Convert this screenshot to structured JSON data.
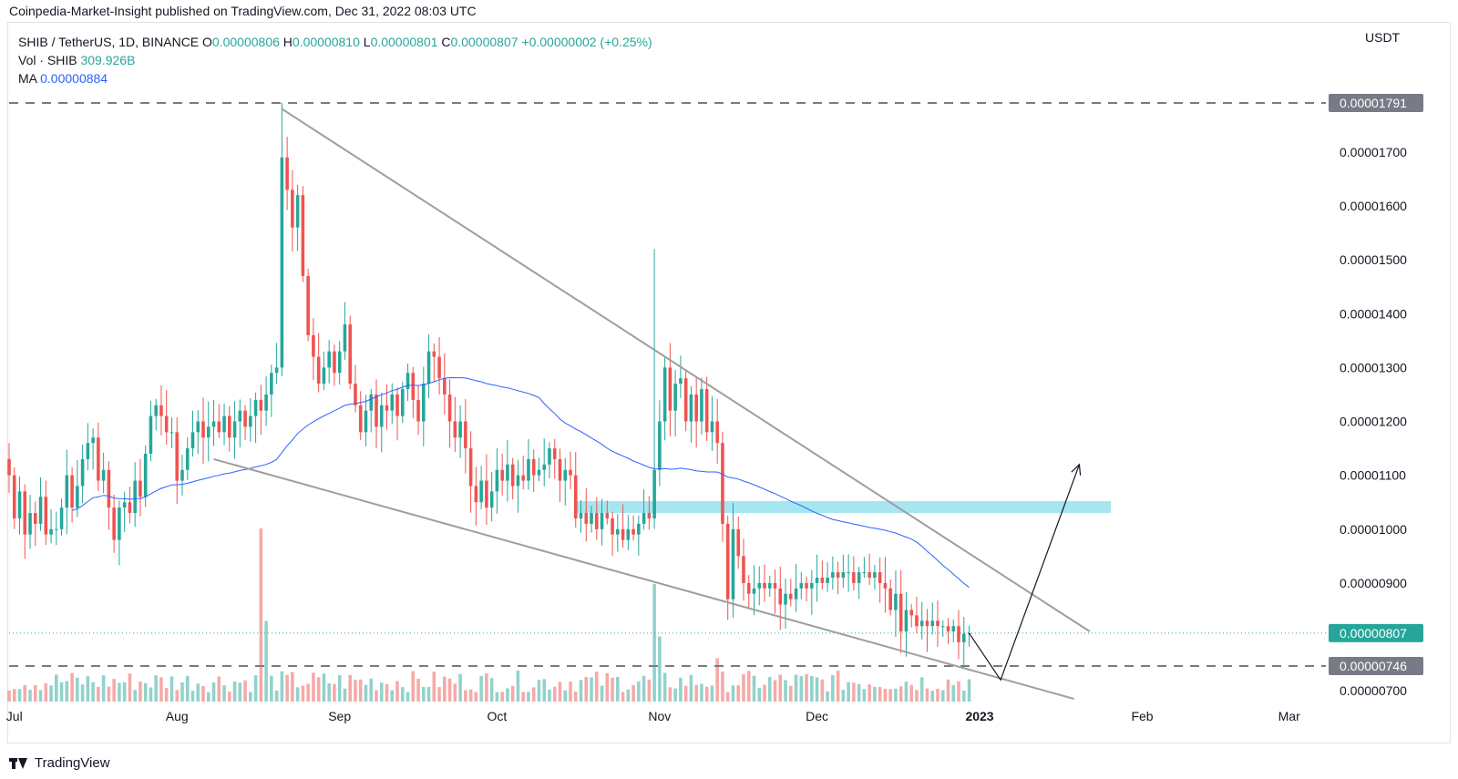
{
  "header": {
    "publisher_line": "Coinpedia-Market-Insight published on TradingView.com, Dec 31, 2022 08:03 UTC"
  },
  "legend": {
    "symbol": "SHIB / TetherUS, 1D, BINANCE",
    "open_label": "O",
    "open": "0.00000806",
    "high_label": "H",
    "high": "0.00000810",
    "low_label": "L",
    "low": "0.00000801",
    "close_label": "C",
    "close": "0.00000807",
    "change": "+0.00000002 (+0.25%)",
    "volume_label": "Vol · SHIB",
    "volume": "309.926B",
    "ma_label": "MA",
    "ma": "0.00000884"
  },
  "price_axis": {
    "unit": "USDT"
  },
  "footer": {
    "brand": "TradingView"
  },
  "colors": {
    "up": "#26a69a",
    "down": "#ef5350",
    "ma": "#2962ff",
    "zone": "#7fdce9",
    "trendline": "#9e9e9e",
    "level_badge": "#787b86",
    "current_badge": "#26a69a"
  },
  "chart_data": {
    "type": "candlestick",
    "interval": "1D",
    "x_axis": {
      "tick_labels": [
        "Jul",
        "Aug",
        "Sep",
        "Oct",
        "Nov",
        "Dec",
        "2023",
        "Feb",
        "Mar"
      ],
      "tick_dates": [
        "2022-07-01",
        "2022-08-01",
        "2022-09-01",
        "2022-10-01",
        "2022-11-01",
        "2022-12-01",
        "2023-01-01",
        "2023-02-01",
        "2023-03-01"
      ],
      "range": [
        "2022-06-30",
        "2023-03-08"
      ]
    },
    "y_axis": {
      "tick_labels": [
        "0.00001700",
        "0.00001600",
        "0.00001500",
        "0.00001400",
        "0.00001300",
        "0.00001200",
        "0.00001100",
        "0.00001000",
        "0.00000900",
        "0.00000700"
      ],
      "ticks": [
        1.7e-05,
        1.6e-05,
        1.5e-05,
        1.4e-05,
        1.3e-05,
        1.2e-05,
        1.1e-05,
        1e-05,
        9e-06,
        7e-06
      ],
      "range": [
        6.8e-06,
        1.83e-05
      ]
    },
    "price_labels": [
      {
        "value": 1.791e-05,
        "text": "0.00001791",
        "style": "dashed-level"
      },
      {
        "value": 8.07e-06,
        "text": "0.00000807",
        "style": "current-price"
      },
      {
        "value": 7.46e-06,
        "text": "0.00000746",
        "style": "dashed-level"
      }
    ],
    "closes": [
      1.1,
      1.02,
      1.07,
      0.99,
      1.03,
      1.01,
      1.06,
      0.99,
      1.0,
      1.0,
      1.04,
      1.1,
      1.04,
      1.08,
      1.13,
      1.16,
      1.17,
      1.09,
      1.11,
      1.04,
      0.98,
      1.04,
      1.05,
      1.03,
      1.09,
      1.06,
      1.14,
      1.21,
      1.23,
      1.21,
      1.18,
      1.18,
      1.09,
      1.11,
      1.15,
      1.18,
      1.2,
      1.17,
      1.19,
      1.2,
      1.18,
      1.21,
      1.17,
      1.2,
      1.22,
      1.19,
      1.21,
      1.24,
      1.22,
      1.25,
      1.29,
      1.3,
      1.69,
      1.63,
      1.56,
      1.62,
      1.47,
      1.36,
      1.32,
      1.27,
      1.3,
      1.33,
      1.29,
      1.33,
      1.38,
      1.27,
      1.23,
      1.18,
      1.22,
      1.25,
      1.19,
      1.23,
      1.22,
      1.25,
      1.21,
      1.26,
      1.29,
      1.24,
      1.2,
      1.27,
      1.33,
      1.32,
      1.28,
      1.25,
      1.2,
      1.17,
      1.2,
      1.15,
      1.08,
      1.05,
      1.09,
      1.04,
      1.07,
      1.11,
      1.09,
      1.12,
      1.08,
      1.1,
      1.09,
      1.13,
      1.1,
      1.11,
      1.12,
      1.15,
      1.13,
      1.09,
      1.11,
      1.1,
      1.02,
      1.03,
      1.01,
      1.03,
      1.0,
      1.03,
      1.02,
      0.99,
      1.0,
      0.98,
      1.0,
      0.99,
      1.01,
      1.03,
      1.02,
      1.11,
      1.2,
      1.3,
      1.22,
      1.27,
      1.28,
      1.2,
      1.25,
      1.2,
      1.26,
      1.18,
      1.2,
      1.16,
      1.01,
      0.87,
      1.0,
      0.95,
      0.9,
      0.88,
      0.89,
      0.9,
      0.89,
      0.9,
      0.89,
      0.86,
      0.88,
      0.87,
      0.89,
      0.9,
      0.89,
      0.9,
      0.91,
      0.9,
      0.91,
      0.92,
      0.91,
      0.92,
      0.92,
      0.9,
      0.92,
      0.92,
      0.91,
      0.92,
      0.9,
      0.89,
      0.85,
      0.88,
      0.81,
      0.85,
      0.84,
      0.82,
      0.83,
      0.82,
      0.83,
      0.82,
      0.82,
      0.81,
      0.82,
      0.79,
      0.806,
      0.807
    ],
    "moving_average": {
      "label": "MA",
      "last_value": 8.84e-06
    },
    "annotations": [
      {
        "type": "descending-wedge-upper-line"
      },
      {
        "type": "descending-wedge-lower-line"
      },
      {
        "type": "support-resistance-zone",
        "price_low": 1.03e-05,
        "price_high": 1.052e-05
      },
      {
        "type": "projected-path-arrow",
        "to_price": 1.12e-05
      }
    ]
  }
}
